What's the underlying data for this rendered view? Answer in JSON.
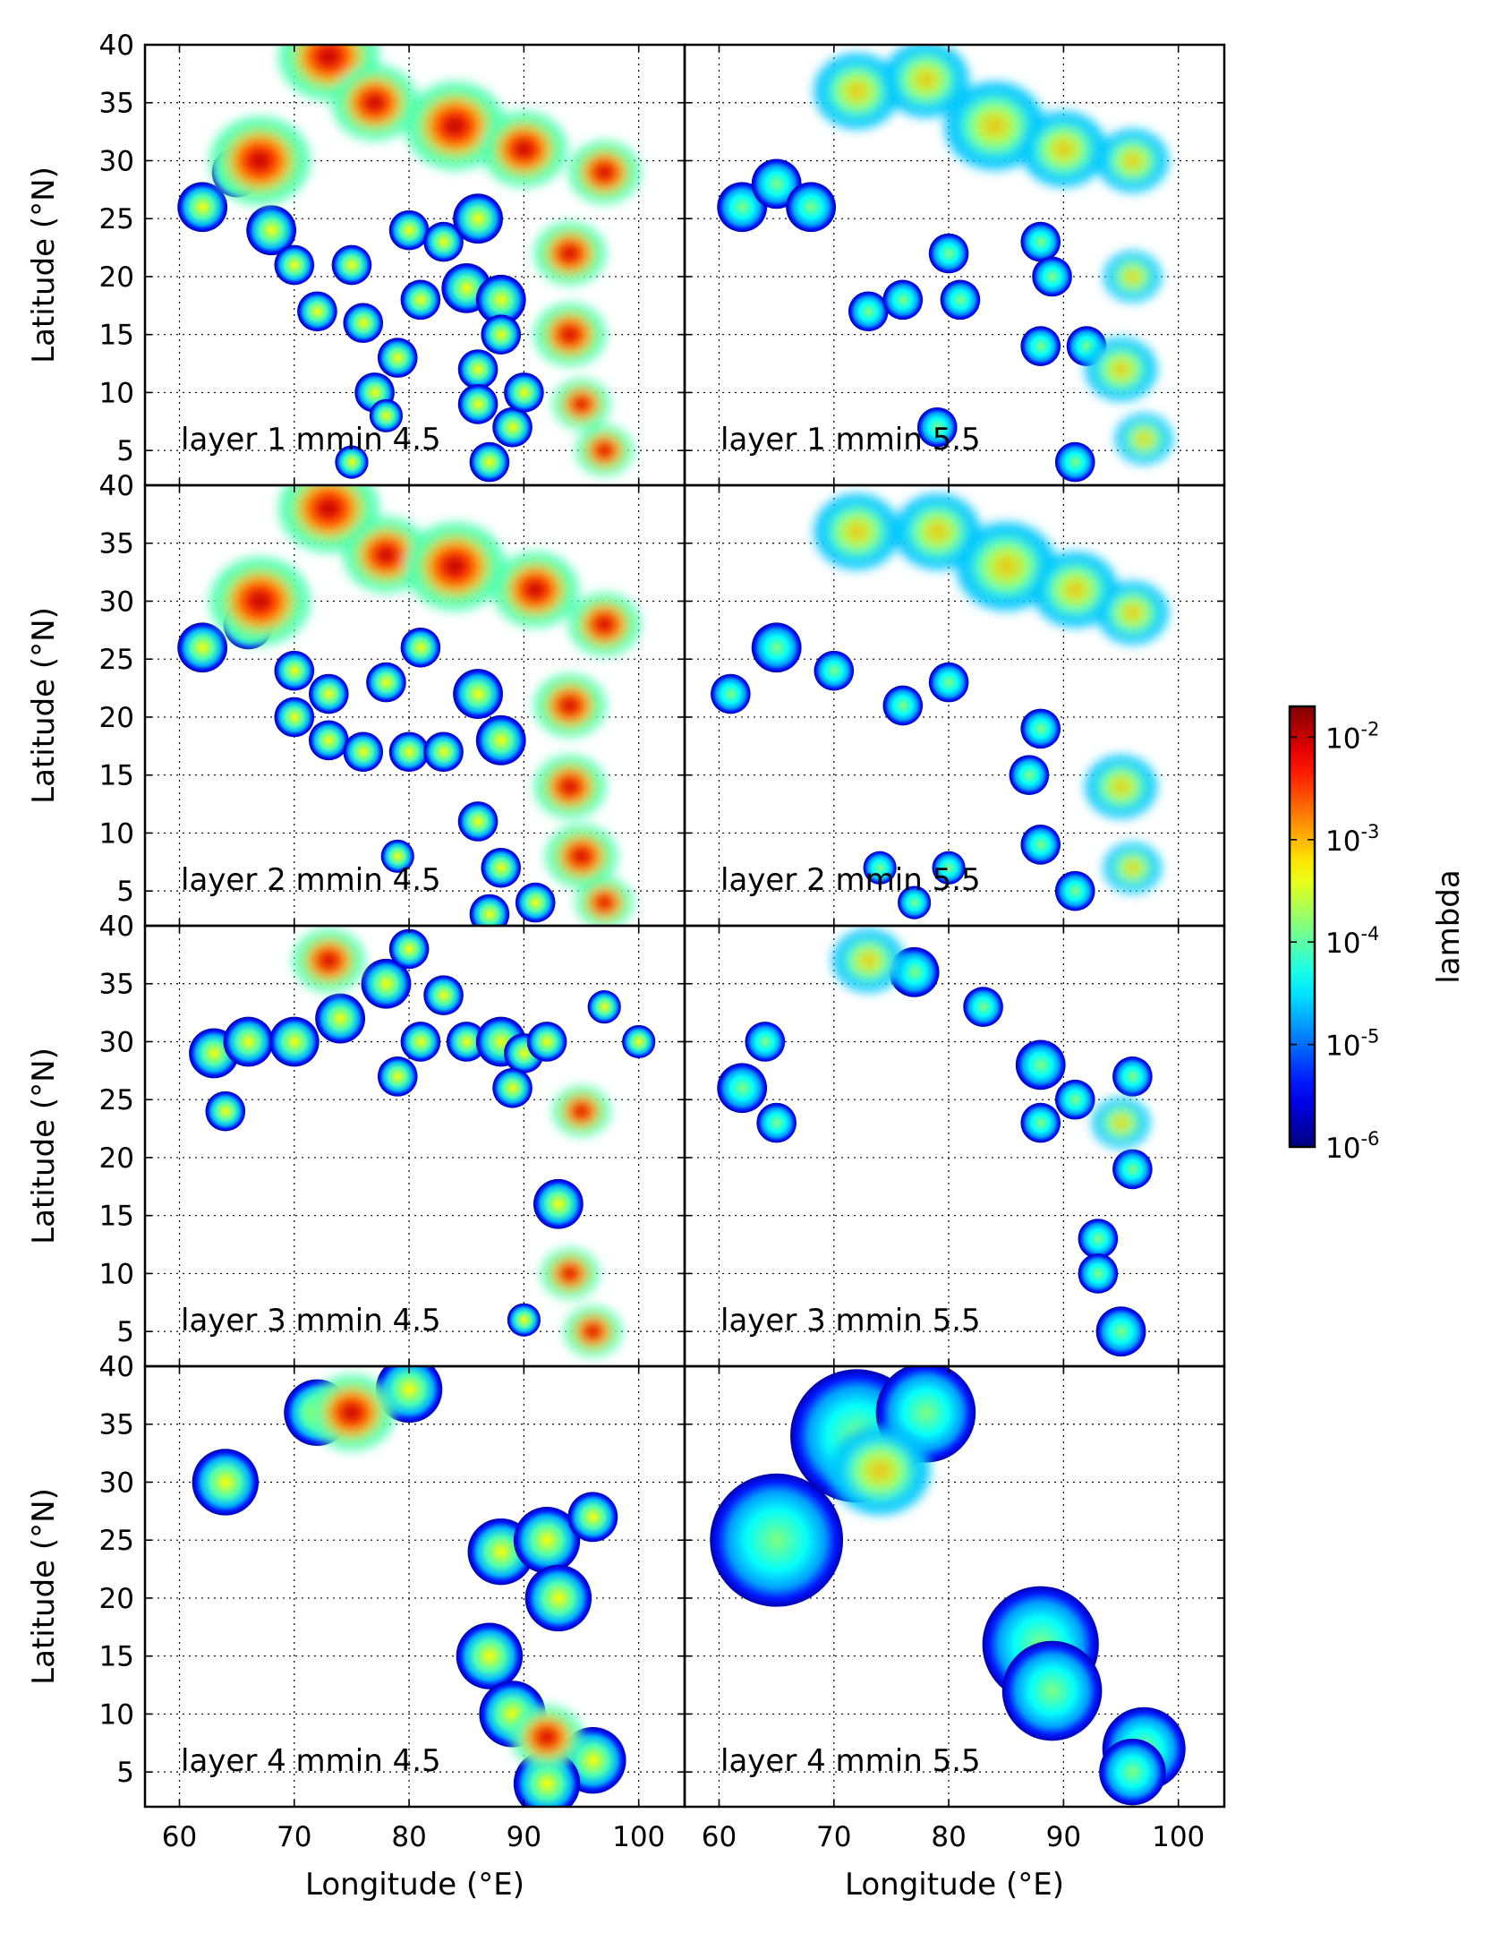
{
  "chart_data": {
    "type": "heatmap",
    "layout": "4 rows x 2 columns of map panels",
    "x": {
      "label": "Longitude (°E)",
      "range": [
        57,
        104
      ],
      "ticks": [
        60,
        70,
        80,
        90,
        100
      ],
      "tick_labels": [
        "60",
        "70",
        "80",
        "90",
        "100"
      ]
    },
    "y": {
      "label": "Latitude (°N)",
      "range": [
        2,
        40
      ],
      "ticks": [
        5,
        10,
        15,
        20,
        25,
        30,
        35,
        40
      ],
      "tick_labels": [
        "5",
        "10",
        "15",
        "20",
        "25",
        "30",
        "35",
        "40"
      ]
    },
    "grid": true,
    "colorbar": {
      "label": "lambda",
      "scale": "log",
      "colormap": "jet",
      "range": [
        1e-06,
        0.02
      ],
      "ticks": [
        {
          "base": "10",
          "exp": "-2",
          "value": 0.01
        },
        {
          "base": "10",
          "exp": "-3",
          "value": 0.001
        },
        {
          "base": "10",
          "exp": "-4",
          "value": 0.0001
        },
        {
          "base": "10",
          "exp": "-5",
          "value": 1e-05
        },
        {
          "base": "10",
          "exp": "-6",
          "value": 1e-06
        }
      ]
    },
    "panels": [
      {
        "label": "layer 1 mmin 4.5",
        "layer": 1,
        "mmin": 4.5,
        "row": 0,
        "col": 0,
        "intensity": 1.0,
        "hotspots": [
          [
            73,
            39,
            3.5
          ],
          [
            67,
            30,
            3.5
          ],
          [
            77,
            35,
            3
          ],
          [
            84,
            33,
            3.5
          ],
          [
            90,
            31,
            3
          ],
          [
            97,
            29,
            2.5
          ],
          [
            94,
            22,
            2.5
          ],
          [
            94,
            15,
            2.5
          ],
          [
            95,
            9,
            2
          ],
          [
            97,
            5,
            2
          ]
        ],
        "blobs": [
          [
            62,
            26,
            1.5
          ],
          [
            65,
            29,
            1.5
          ],
          [
            68,
            24,
            1.5
          ],
          [
            70,
            21,
            1.2
          ],
          [
            72,
            17,
            1.2
          ],
          [
            75,
            21,
            1.2
          ],
          [
            76,
            16,
            1.2
          ],
          [
            79,
            13,
            1.2
          ],
          [
            77,
            10,
            1.2
          ],
          [
            81,
            18,
            1.2
          ],
          [
            80,
            24,
            1.2
          ],
          [
            83,
            23,
            1.2
          ],
          [
            85,
            19,
            1.5
          ],
          [
            86,
            25,
            1.5
          ],
          [
            88,
            18,
            1.5
          ],
          [
            86,
            12,
            1.2
          ],
          [
            88,
            15,
            1.2
          ],
          [
            86,
            9,
            1.2
          ],
          [
            89,
            7,
            1.2
          ],
          [
            87,
            4,
            1.2
          ],
          [
            90,
            10,
            1.2
          ],
          [
            75,
            4,
            1
          ],
          [
            78,
            8,
            1
          ]
        ]
      },
      {
        "label": "layer 1 mmin 5.5",
        "layer": 1,
        "mmin": 5.5,
        "row": 0,
        "col": 1,
        "intensity": 0.55,
        "hotspots": [
          [
            72,
            36,
            3
          ],
          [
            78,
            37,
            3
          ],
          [
            84,
            33,
            3.5
          ],
          [
            90,
            31,
            3
          ],
          [
            96,
            30,
            2.5
          ],
          [
            96,
            20,
            2
          ],
          [
            95,
            12,
            2.5
          ],
          [
            97,
            6,
            2
          ]
        ],
        "blobs": [
          [
            62,
            26,
            1.5
          ],
          [
            65,
            28,
            1.5
          ],
          [
            68,
            26,
            1.5
          ],
          [
            73,
            17,
            1.2
          ],
          [
            76,
            18,
            1.2
          ],
          [
            81,
            18,
            1.2
          ],
          [
            80,
            22,
            1.2
          ],
          [
            79,
            7,
            1.2
          ],
          [
            88,
            23,
            1.2
          ],
          [
            89,
            20,
            1.2
          ],
          [
            88,
            14,
            1.2
          ],
          [
            92,
            14,
            1.2
          ],
          [
            91,
            4,
            1.2
          ]
        ]
      },
      {
        "label": "layer 2 mmin 4.5",
        "layer": 2,
        "mmin": 4.5,
        "row": 1,
        "col": 0,
        "intensity": 1.0,
        "hotspots": [
          [
            73,
            38,
            3.5
          ],
          [
            67,
            30,
            3.5
          ],
          [
            78,
            34,
            3
          ],
          [
            84,
            33,
            3.5
          ],
          [
            91,
            31,
            3
          ],
          [
            97,
            28,
            2.5
          ],
          [
            94,
            21,
            2.5
          ],
          [
            94,
            14,
            2.5
          ],
          [
            95,
            8,
            2.5
          ],
          [
            97,
            4,
            2
          ]
        ],
        "blobs": [
          [
            62,
            26,
            1.5
          ],
          [
            66,
            28,
            1.5
          ],
          [
            70,
            24,
            1.2
          ],
          [
            73,
            22,
            1.2
          ],
          [
            70,
            20,
            1.2
          ],
          [
            73,
            18,
            1.2
          ],
          [
            76,
            17,
            1.2
          ],
          [
            80,
            17,
            1.2
          ],
          [
            83,
            17,
            1.2
          ],
          [
            78,
            23,
            1.2
          ],
          [
            81,
            26,
            1.2
          ],
          [
            86,
            22,
            1.5
          ],
          [
            88,
            18,
            1.5
          ],
          [
            86,
            11,
            1.2
          ],
          [
            88,
            7,
            1.2
          ],
          [
            87,
            3,
            1.2
          ],
          [
            91,
            4,
            1.2
          ],
          [
            79,
            8,
            1
          ]
        ]
      },
      {
        "label": "layer 2 mmin 5.5",
        "layer": 2,
        "mmin": 5.5,
        "row": 1,
        "col": 1,
        "intensity": 0.5,
        "hotspots": [
          [
            72,
            36,
            3
          ],
          [
            79,
            36,
            3
          ],
          [
            85,
            33,
            3.5
          ],
          [
            91,
            31,
            3
          ],
          [
            96,
            29,
            2.5
          ],
          [
            95,
            14,
            2.5
          ],
          [
            96,
            7,
            2
          ]
        ],
        "blobs": [
          [
            61,
            22,
            1.2
          ],
          [
            65,
            26,
            1.5
          ],
          [
            70,
            24,
            1.2
          ],
          [
            76,
            21,
            1.2
          ],
          [
            80,
            23,
            1.2
          ],
          [
            74,
            7,
            1
          ],
          [
            77,
            4,
            1
          ],
          [
            80,
            7,
            1
          ],
          [
            87,
            15,
            1.2
          ],
          [
            88,
            9,
            1.2
          ],
          [
            91,
            5,
            1.2
          ],
          [
            88,
            19,
            1.2
          ]
        ]
      },
      {
        "label": "layer 3 mmin 4.5",
        "layer": 3,
        "mmin": 4.5,
        "row": 2,
        "col": 0,
        "intensity": 1.0,
        "hotspots": [
          [
            73,
            37,
            2.5
          ],
          [
            95,
            24,
            2
          ],
          [
            94,
            10,
            2
          ],
          [
            96,
            5,
            2
          ]
        ],
        "blobs": [
          [
            63,
            29,
            1.5
          ],
          [
            66,
            30,
            1.5
          ],
          [
            70,
            30,
            1.5
          ],
          [
            74,
            32,
            1.5
          ],
          [
            78,
            35,
            1.5
          ],
          [
            80,
            38,
            1.2
          ],
          [
            83,
            34,
            1.2
          ],
          [
            81,
            30,
            1.2
          ],
          [
            85,
            30,
            1.2
          ],
          [
            88,
            30,
            1.5
          ],
          [
            90,
            29,
            1.2
          ],
          [
            89,
            26,
            1.2
          ],
          [
            92,
            30,
            1.2
          ],
          [
            97,
            33,
            1
          ],
          [
            100,
            30,
            1
          ],
          [
            64,
            24,
            1.2
          ],
          [
            79,
            27,
            1.2
          ],
          [
            93,
            16,
            1.5
          ],
          [
            90,
            6,
            1
          ]
        ]
      },
      {
        "label": "layer 3 mmin 5.5",
        "layer": 3,
        "mmin": 5.5,
        "row": 2,
        "col": 1,
        "intensity": 0.5,
        "hotspots": [
          [
            73,
            37,
            2.5
          ],
          [
            95,
            23,
            2
          ]
        ],
        "blobs": [
          [
            62,
            26,
            1.5
          ],
          [
            64,
            30,
            1.2
          ],
          [
            65,
            23,
            1.2
          ],
          [
            77,
            36,
            1.5
          ],
          [
            83,
            33,
            1.2
          ],
          [
            88,
            28,
            1.5
          ],
          [
            88,
            23,
            1.2
          ],
          [
            91,
            25,
            1.2
          ],
          [
            96,
            27,
            1.2
          ],
          [
            96,
            19,
            1.2
          ],
          [
            93,
            13,
            1.2
          ],
          [
            93,
            10,
            1.2
          ],
          [
            95,
            5,
            1.5
          ]
        ]
      },
      {
        "label": "layer 4 mmin 4.5",
        "layer": 4,
        "mmin": 4.5,
        "row": 3,
        "col": 0,
        "intensity": 1.0,
        "hotspots": [
          [
            75,
            36,
            3
          ],
          [
            92,
            8,
            2.5
          ]
        ],
        "blobs": [
          [
            64,
            30,
            2
          ],
          [
            72,
            36,
            2
          ],
          [
            80,
            38,
            2
          ],
          [
            88,
            24,
            2
          ],
          [
            92,
            25,
            2
          ],
          [
            96,
            27,
            1.5
          ],
          [
            93,
            20,
            2
          ],
          [
            87,
            15,
            2
          ],
          [
            89,
            10,
            2
          ],
          [
            96,
            6,
            2
          ],
          [
            92,
            4,
            2
          ]
        ]
      },
      {
        "label": "layer 4 mmin 5.5",
        "layer": 4,
        "mmin": 5.5,
        "row": 3,
        "col": 1,
        "intensity": 0.55,
        "hotspots": [
          [
            74,
            31,
            3.5
          ]
        ],
        "blobs": [
          [
            65,
            25,
            4
          ],
          [
            72,
            34,
            4
          ],
          [
            78,
            36,
            3
          ],
          [
            88,
            16,
            3.5
          ],
          [
            89,
            12,
            3
          ],
          [
            97,
            7,
            2.5
          ],
          [
            96,
            5,
            2
          ]
        ]
      }
    ]
  }
}
